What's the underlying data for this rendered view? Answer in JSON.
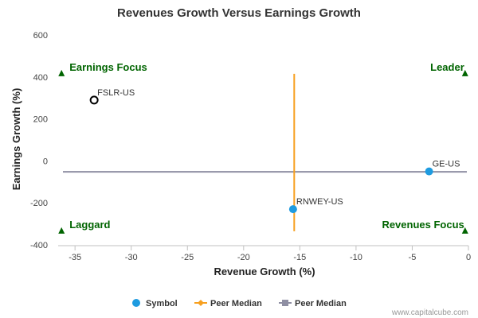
{
  "chart_data": {
    "type": "scatter",
    "title": "Revenues Growth Versus Earnings Growth",
    "xlabel": "Revenue Growth (%)",
    "ylabel": "Earnings Growth (%)",
    "xlim": [
      -36.5,
      0
    ],
    "ylim": [
      -400,
      600
    ],
    "xticks": [
      -35,
      -30,
      -25,
      -20,
      -15,
      -10,
      -5,
      0
    ],
    "yticks": [
      600,
      400,
      200,
      0,
      -200,
      -400
    ],
    "grid": false,
    "legend_position": "bottom",
    "points": [
      {
        "label": "FSLR-US",
        "x": -33.3,
        "y": 290,
        "style": "open-circle"
      },
      {
        "label": "GE-US",
        "x": -3.5,
        "y": -50,
        "style": "filled-circle"
      },
      {
        "label": "RNWEY-US",
        "x": -15.6,
        "y": -230,
        "style": "filled-circle"
      }
    ],
    "peer_median_revenue_growth": -15.5,
    "peer_median_revenue_y_range": [
      -335,
      415
    ],
    "peer_median_earnings_growth": -52,
    "quadrants": [
      {
        "label": "Earnings Focus",
        "corner": "top-left",
        "marker_x": -36.2,
        "marker_y": 415
      },
      {
        "label": "Leader",
        "corner": "top-right",
        "marker_x": -0.3,
        "marker_y": 415
      },
      {
        "label": "Laggard",
        "corner": "bottom-left",
        "marker_x": -36.2,
        "marker_y": -335
      },
      {
        "label": "Revenues Focus",
        "corner": "bottom-right",
        "marker_x": -0.3,
        "marker_y": -335
      }
    ],
    "legend": [
      {
        "label": "Symbol",
        "marker": "circle"
      },
      {
        "label": "Peer Median",
        "marker": "diamond-line"
      },
      {
        "label": "Peer Median",
        "marker": "square-line"
      }
    ],
    "credit": "www.capitalcube.com"
  },
  "colors": {
    "point_blue": "#1e9be0",
    "median_orange": "#f7a020",
    "median_gray": "#8f8fa3",
    "quadrant_green": "#006400"
  }
}
